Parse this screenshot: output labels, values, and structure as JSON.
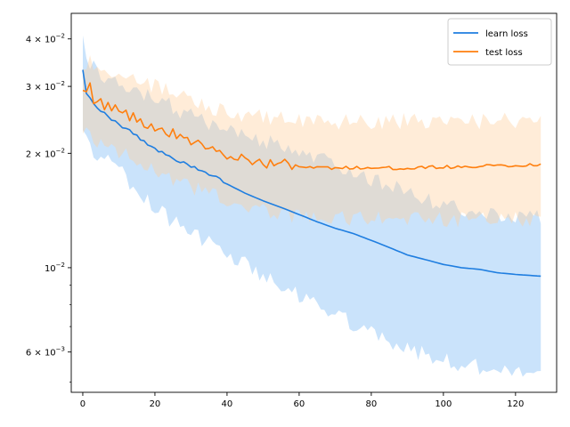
{
  "chart_data": {
    "type": "line",
    "title": "",
    "xlabel": "",
    "ylabel": "",
    "yscale": "log",
    "xlim": [
      -3.2,
      131.4
    ],
    "ylim": [
      0.0047,
      0.0467
    ],
    "grid": false,
    "legend_position": "top-right",
    "x_ticks": [
      0,
      20,
      40,
      60,
      80,
      100,
      120
    ],
    "x_tick_labels": [
      "0",
      "20",
      "40",
      "60",
      "80",
      "100",
      "120"
    ],
    "y_ticks": [
      0.006,
      0.01,
      0.02,
      0.03,
      0.04
    ],
    "y_tick_labels": [
      {
        "base": "6 × 10",
        "exp": "−3"
      },
      {
        "base": "10",
        "exp": "−2"
      },
      {
        "base": "2 × 10",
        "exp": "−2"
      },
      {
        "base": "3 × 10",
        "exp": "−2"
      },
      {
        "base": "4 × 10",
        "exp": "−2"
      }
    ],
    "y_minor_ticks": [
      0.005,
      0.007,
      0.008,
      0.009
    ],
    "series": [
      {
        "name": "learn loss",
        "color": "#1f7ee0",
        "band_color": "#7ab8f5",
        "keypoints": [
          [
            0,
            0.033,
            0.023,
            0.042
          ],
          [
            1,
            0.029,
            0.0215,
            0.036
          ],
          [
            3,
            0.0268,
            0.02,
            0.0335
          ],
          [
            6,
            0.0255,
            0.0192,
            0.0318
          ],
          [
            10,
            0.0238,
            0.018,
            0.03
          ],
          [
            15,
            0.0222,
            0.016,
            0.029
          ],
          [
            20,
            0.0206,
            0.0145,
            0.0278
          ],
          [
            25,
            0.0193,
            0.0132,
            0.0265
          ],
          [
            30,
            0.0185,
            0.0123,
            0.025
          ],
          [
            35,
            0.0177,
            0.0117,
            0.024
          ],
          [
            40,
            0.0166,
            0.011,
            0.0228
          ],
          [
            45,
            0.0157,
            0.0102,
            0.0222
          ],
          [
            50,
            0.015,
            0.0095,
            0.0216
          ],
          [
            55,
            0.0144,
            0.0089,
            0.0208
          ],
          [
            60,
            0.0138,
            0.0084,
            0.02
          ],
          [
            65,
            0.0132,
            0.0079,
            0.0194
          ],
          [
            70,
            0.0127,
            0.0075,
            0.0186
          ],
          [
            75,
            0.0123,
            0.0071,
            0.0179
          ],
          [
            80,
            0.0118,
            0.0068,
            0.0172
          ],
          [
            85,
            0.0113,
            0.0064,
            0.0164
          ],
          [
            90,
            0.0108,
            0.0061,
            0.0157
          ],
          [
            95,
            0.0105,
            0.0059,
            0.0151
          ],
          [
            100,
            0.0102,
            0.0057,
            0.0146
          ],
          [
            105,
            0.01,
            0.0056,
            0.0142
          ],
          [
            110,
            0.0099,
            0.0055,
            0.0139
          ],
          [
            115,
            0.0097,
            0.0054,
            0.0137
          ],
          [
            120,
            0.0096,
            0.0053,
            0.0136
          ],
          [
            127,
            0.0095,
            0.0053,
            0.0135
          ]
        ]
      },
      {
        "name": "test loss",
        "color": "#ff7f0e",
        "band_color": "#ffcf9e",
        "keypoints": [
          [
            0,
            0.029,
            0.0235,
            0.0345
          ],
          [
            1,
            0.0295,
            0.023,
            0.034
          ],
          [
            2,
            0.0308,
            0.0225,
            0.035
          ],
          [
            3,
            0.0278,
            0.0215,
            0.0335
          ],
          [
            5,
            0.0272,
            0.021,
            0.033
          ],
          [
            8,
            0.0265,
            0.0205,
            0.033
          ],
          [
            12,
            0.0255,
            0.0198,
            0.0322
          ],
          [
            16,
            0.0242,
            0.0188,
            0.0312
          ],
          [
            20,
            0.0236,
            0.0182,
            0.03
          ],
          [
            25,
            0.0225,
            0.0172,
            0.0288
          ],
          [
            30,
            0.0215,
            0.0163,
            0.0275
          ],
          [
            35,
            0.0205,
            0.0156,
            0.0266
          ],
          [
            40,
            0.0198,
            0.015,
            0.0258
          ],
          [
            45,
            0.0193,
            0.0145,
            0.0252
          ],
          [
            50,
            0.0189,
            0.0141,
            0.0248
          ],
          [
            55,
            0.0187,
            0.0138,
            0.0246
          ],
          [
            60,
            0.0186,
            0.0136,
            0.0244
          ],
          [
            65,
            0.0184,
            0.0135,
            0.0243
          ],
          [
            70,
            0.0183,
            0.0135,
            0.0243
          ],
          [
            80,
            0.0183,
            0.0134,
            0.0243
          ],
          [
            90,
            0.0183,
            0.0134,
            0.0243
          ],
          [
            100,
            0.0184,
            0.0134,
            0.0243
          ],
          [
            110,
            0.0185,
            0.0134,
            0.0243
          ],
          [
            120,
            0.0186,
            0.0134,
            0.0244
          ],
          [
            127,
            0.0187,
            0.0134,
            0.0244
          ]
        ]
      }
    ]
  }
}
